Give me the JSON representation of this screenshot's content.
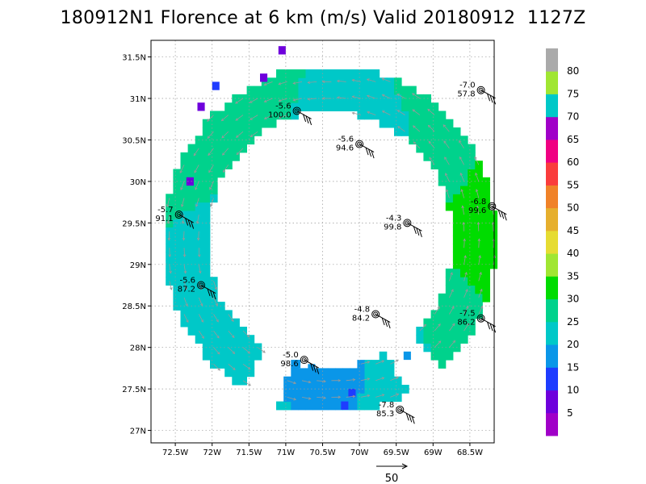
{
  "title": "180912N1 Florence at 6 km (m/s) Valid 20180912  1127Z",
  "chart_data": {
    "type": "heatmap",
    "x_range": [
      -72.83,
      -68.17
    ],
    "y_range": [
      26.85,
      31.7
    ],
    "x_ticks": [
      {
        "v": -72.5,
        "label": "72.5W"
      },
      {
        "v": -72,
        "label": "72W"
      },
      {
        "v": -71.5,
        "label": "71.5W"
      },
      {
        "v": -71,
        "label": "71W"
      },
      {
        "v": -70.5,
        "label": "70.5W"
      },
      {
        "v": -70,
        "label": "70W"
      },
      {
        "v": -69.5,
        "label": "69.5W"
      },
      {
        "v": -69,
        "label": "69W"
      },
      {
        "v": -68.5,
        "label": "68.5W"
      }
    ],
    "y_ticks": [
      {
        "v": 27,
        "label": "27N"
      },
      {
        "v": 27.5,
        "label": "27.5N"
      },
      {
        "v": 28,
        "label": "28N"
      },
      {
        "v": 28.5,
        "label": "28.5N"
      },
      {
        "v": 29,
        "label": "29N"
      },
      {
        "v": 29.5,
        "label": "29.5N"
      },
      {
        "v": 30,
        "label": "30N"
      },
      {
        "v": 30.5,
        "label": "30.5N"
      },
      {
        "v": 31,
        "label": "31N"
      },
      {
        "v": 31.5,
        "label": "31.5N"
      }
    ],
    "grid": true,
    "center": {
      "lon": -70.4,
      "lat": 29.3
    },
    "ring": {
      "inner_radius_deg": 1.55,
      "outer_radius_deg": 2.1
    },
    "ring_speed_profile": [
      {
        "bearing": 0,
        "speed": 22
      },
      {
        "bearing": 30,
        "speed": 24
      },
      {
        "bearing": 60,
        "speed": 28
      },
      {
        "bearing": 90,
        "speed": 32
      },
      {
        "bearing": 120,
        "speed": 27
      },
      {
        "bearing": 150,
        "speed": 22
      },
      {
        "bearing": 180,
        "speed": 17
      },
      {
        "bearing": 210,
        "speed": 20
      },
      {
        "bearing": 240,
        "speed": 22
      },
      {
        "bearing": 270,
        "speed": 23
      },
      {
        "bearing": 300,
        "speed": 26
      },
      {
        "bearing": 330,
        "speed": 27
      }
    ],
    "extra_patches": [
      {
        "lon": -72.3,
        "lat": 30.0,
        "speed": 8
      },
      {
        "lon": -72.15,
        "lat": 30.9,
        "speed": 9
      },
      {
        "lon": -71.3,
        "lat": 31.25,
        "speed": 9
      },
      {
        "lon": -71.05,
        "lat": 31.58,
        "speed": 8
      },
      {
        "lon": -71.95,
        "lat": 31.15,
        "speed": 14
      },
      {
        "lon": -70.2,
        "lat": 27.3,
        "speed": 10
      },
      {
        "lon": -70.1,
        "lat": 27.45,
        "speed": 10
      },
      {
        "lon": -70.65,
        "lat": 27.75,
        "speed": 15
      },
      {
        "lon": -70.85,
        "lat": 27.8,
        "speed": 15
      },
      {
        "lon": -69.35,
        "lat": 27.9,
        "speed": 17
      }
    ],
    "stations": [
      {
        "lon": -70.85,
        "lat": 30.85,
        "t": "-5.6",
        "p": "100.0"
      },
      {
        "lon": -70.0,
        "lat": 30.45,
        "t": "-5.6",
        "p": "94.6"
      },
      {
        "lon": -68.35,
        "lat": 31.1,
        "t": "-7.0",
        "p": "57.8"
      },
      {
        "lon": -68.2,
        "lat": 29.7,
        "t": "-6.8",
        "p": "99.6"
      },
      {
        "lon": -72.45,
        "lat": 29.6,
        "t": "-5.7",
        "p": "91.1"
      },
      {
        "lon": -69.35,
        "lat": 29.5,
        "t": "-4.3",
        "p": "99.8"
      },
      {
        "lon": -72.15,
        "lat": 28.75,
        "t": "-5.6",
        "p": "87.2"
      },
      {
        "lon": -69.78,
        "lat": 28.4,
        "t": "-4.8",
        "p": "84.2"
      },
      {
        "lon": -68.35,
        "lat": 28.35,
        "t": "-7.5",
        "p": "86.2"
      },
      {
        "lon": -70.75,
        "lat": 27.85,
        "t": "-5.0",
        "p": "98.6"
      },
      {
        "lon": -69.45,
        "lat": 27.25,
        "t": "-7.8",
        "p": "85.3"
      }
    ],
    "colorbar": {
      "levels": [
        0,
        5,
        10,
        15,
        20,
        25,
        30,
        35,
        40,
        45,
        50,
        55,
        60,
        65,
        70,
        75,
        80,
        85
      ],
      "labels": [
        "5",
        "10",
        "15",
        "20",
        "25",
        "30",
        "35",
        "40",
        "45",
        "50",
        "55",
        "60",
        "65",
        "70",
        "75",
        "80"
      ],
      "colors": [
        "#a000c8",
        "#6e00dc",
        "#1e3cff",
        "#0a96e8",
        "#00c8c8",
        "#00d28c",
        "#00dc00",
        "#a0e632",
        "#e6dc32",
        "#e6af2d",
        "#f08228",
        "#fa3c3c",
        "#f00082",
        "#a000c8",
        "#00c8c8",
        "#a0e632",
        "#aaaaaa"
      ]
    },
    "vector_scale_label": "50"
  }
}
